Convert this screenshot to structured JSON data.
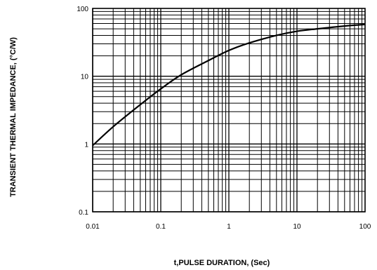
{
  "chart_data": {
    "type": "line",
    "xlabel": "t,PULSE DURATION, (Sec)",
    "ylabel": "TRANSIENT THERMAL IMPEDANCE, (°C/W)",
    "x_scale": "log",
    "y_scale": "log",
    "xlim": [
      0.01,
      100
    ],
    "ylim": [
      0.1,
      100
    ],
    "x_ticks": [
      "0.01",
      "0.1",
      "1",
      "10",
      "100"
    ],
    "y_ticks": [
      "0.1",
      "1",
      "10",
      "100"
    ],
    "grid": true,
    "series": [
      {
        "x": [
          0.01,
          0.02,
          0.05,
          0.1,
          0.2,
          0.5,
          1,
          2,
          5,
          10,
          20,
          50,
          100
        ],
        "y": [
          0.95,
          1.8,
          3.8,
          6.5,
          10.5,
          17,
          24,
          31,
          40,
          46,
          50,
          55,
          58
        ]
      }
    ]
  }
}
